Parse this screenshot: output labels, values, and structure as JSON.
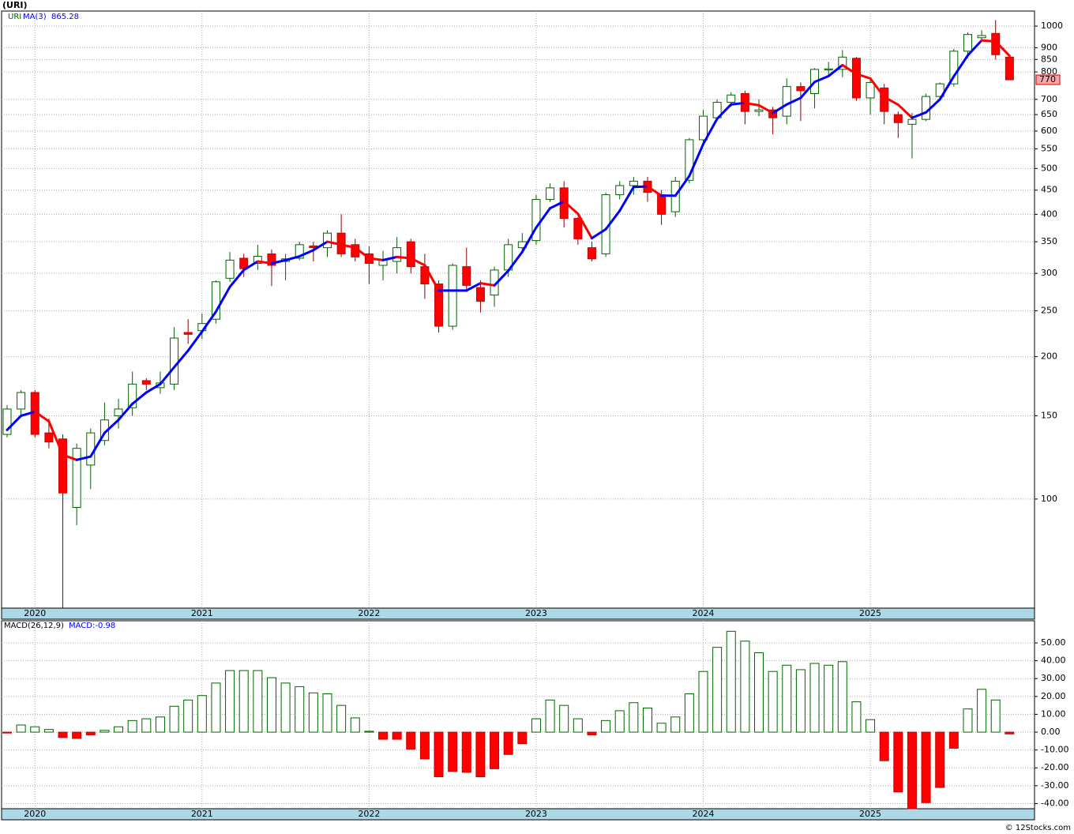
{
  "chart_data": [
    {
      "type": "candlestick",
      "title": "(URI)",
      "name": "URI",
      "log_scale": true,
      "grid": true,
      "up_color": "#006400",
      "down_color": "#ff0000",
      "categories": [
        null,
        null,
        "2020",
        null,
        null,
        null,
        null,
        null,
        null,
        null,
        null,
        null,
        null,
        null,
        "2021",
        null,
        null,
        null,
        null,
        null,
        null,
        null,
        null,
        null,
        null,
        null,
        "2022",
        null,
        null,
        null,
        null,
        null,
        null,
        null,
        null,
        null,
        null,
        null,
        "2023",
        null,
        null,
        null,
        null,
        null,
        null,
        null,
        null,
        null,
        null,
        null,
        "2024",
        null,
        null,
        null,
        null,
        null,
        null,
        null,
        null,
        null,
        null,
        null,
        "2025",
        null,
        null,
        null,
        null,
        null,
        null,
        null,
        null,
        null,
        null
      ],
      "open": [
        137,
        155,
        168,
        138,
        134,
        96,
        118,
        133,
        150,
        156,
        178,
        172,
        175,
        225,
        227,
        240,
        293,
        323,
        315,
        330,
        318,
        323,
        343,
        340,
        365,
        345,
        330,
        312,
        318,
        350,
        310,
        285,
        232,
        310,
        280,
        270,
        305,
        340,
        352,
        430,
        455,
        392,
        340,
        330,
        440,
        460,
        470,
        440,
        405,
        472,
        575,
        640,
        690,
        720,
        660,
        665,
        645,
        745,
        720,
        808,
        810,
        855,
        705,
        740,
        650,
        620,
        635,
        710,
        755,
        885,
        945,
        965,
        860
      ],
      "high": [
        158,
        170,
        170,
        148,
        137,
        131,
        141,
        160,
        163,
        186,
        180,
        186,
        231,
        240,
        247,
        290,
        333,
        330,
        345,
        337,
        330,
        350,
        350,
        370,
        400,
        355,
        342,
        335,
        358,
        355,
        330,
        290,
        315,
        340,
        290,
        310,
        355,
        365,
        440,
        465,
        470,
        395,
        350,
        445,
        470,
        480,
        480,
        450,
        480,
        580,
        665,
        700,
        725,
        730,
        700,
        675,
        775,
        760,
        815,
        840,
        890,
        860,
        780,
        755,
        660,
        655,
        720,
        760,
        895,
        970,
        980,
        1030,
        865
      ],
      "low": [
        135,
        150,
        135,
        128,
        58.9,
        88,
        105,
        130,
        141,
        150,
        170,
        167,
        170,
        213,
        218,
        235,
        288,
        295,
        305,
        282,
        290,
        320,
        318,
        325,
        325,
        318,
        285,
        290,
        300,
        300,
        265,
        225,
        228,
        278,
        248,
        255,
        295,
        335,
        345,
        425,
        375,
        345,
        318,
        325,
        430,
        440,
        425,
        380,
        395,
        465,
        560,
        630,
        675,
        620,
        645,
        590,
        620,
        630,
        670,
        780,
        780,
        695,
        650,
        620,
        580,
        525,
        630,
        705,
        745,
        855,
        930,
        850,
        770
      ],
      "close": [
        155,
        168,
        137,
        132,
        103,
        128,
        138,
        147,
        155,
        175,
        175,
        176,
        219,
        223,
        235,
        288,
        320,
        307,
        326,
        312,
        322,
        345,
        340,
        365,
        330,
        325,
        315,
        320,
        340,
        310,
        285,
        232,
        312,
        283,
        262,
        305,
        345,
        350,
        430,
        455,
        392,
        355,
        322,
        440,
        460,
        470,
        445,
        400,
        470,
        575,
        645,
        690,
        715,
        660,
        665,
        640,
        745,
        730,
        810,
        812,
        860,
        705,
        760,
        660,
        625,
        635,
        710,
        755,
        885,
        960,
        955,
        870,
        770
      ],
      "ma": {
        "name": "MA(3)",
        "color": "#0000ff",
        "down_color": "#ff0000",
        "values": [
          140,
          150,
          153,
          146,
          124,
          121,
          123,
          138,
          147,
          159,
          168,
          175,
          190,
          206,
          226,
          249,
          281,
          305,
          318,
          315,
          320,
          326,
          336,
          350,
          345,
          340,
          323,
          320,
          325,
          323,
          312,
          276,
          276,
          276,
          286,
          283,
          304,
          333,
          375,
          412,
          426,
          401,
          356,
          372,
          407,
          457,
          458,
          438,
          438,
          482,
          563,
          637,
          683,
          688,
          680,
          655,
          683,
          705,
          762,
          784,
          827,
          792,
          775,
          708,
          682,
          640,
          657,
          700,
          783,
          867,
          933,
          928,
          865.28
        ]
      },
      "ylim": [
        58.8,
        1076
      ],
      "yticks": [
        100,
        150,
        200,
        250,
        300,
        350,
        400,
        450,
        500,
        550,
        600,
        650,
        700,
        800,
        850,
        900,
        1000
      ]
    },
    {
      "type": "bar",
      "name": "MACD(26,12,9)",
      "legend_value": "MACD:-0.98",
      "grid": true,
      "up_color": "#006400",
      "down_color": "#ff0000",
      "categories": [
        null,
        null,
        "2020",
        null,
        null,
        null,
        null,
        null,
        null,
        null,
        null,
        null,
        null,
        null,
        "2021",
        null,
        null,
        null,
        null,
        null,
        null,
        null,
        null,
        null,
        null,
        null,
        "2022",
        null,
        null,
        null,
        null,
        null,
        null,
        null,
        null,
        null,
        null,
        null,
        "2023",
        null,
        null,
        null,
        null,
        null,
        null,
        null,
        null,
        null,
        null,
        null,
        "2024",
        null,
        null,
        null,
        null,
        null,
        null,
        null,
        null,
        null,
        null,
        null,
        "2025",
        null,
        null,
        null,
        null,
        null,
        null,
        null,
        null,
        null,
        null
      ],
      "values": [
        -0.5,
        4,
        3,
        1.5,
        -3,
        -3.5,
        -1.5,
        1,
        3,
        6.5,
        7.5,
        8.5,
        14.5,
        18,
        20.5,
        27.5,
        34.5,
        34.5,
        34.5,
        30.5,
        27.5,
        25.5,
        22,
        21.5,
        15,
        8,
        0.5,
        -4,
        -4,
        -9.5,
        -15,
        -25,
        -22,
        -22.5,
        -25,
        -20.5,
        -12.5,
        -6.5,
        7.5,
        18,
        15,
        7.5,
        -1.5,
        6.5,
        12,
        16.5,
        13.5,
        5,
        8.5,
        21.5,
        34,
        47.5,
        56.5,
        51,
        44.5,
        34,
        37.5,
        35,
        38.5,
        37.5,
        39.5,
        17,
        7,
        -16,
        -33.5,
        -42.9,
        -39.5,
        -31,
        -9,
        13,
        24,
        18,
        -0.98
      ],
      "ylim": [
        -42.9,
        62.4
      ],
      "yticks": [
        {
          "value": 50,
          "label": "50.00"
        },
        {
          "value": 40,
          "label": "40.00"
        },
        {
          "value": 30,
          "label": "30.00"
        },
        {
          "value": 20,
          "label": "20.00"
        },
        {
          "value": 10,
          "label": "10.00"
        },
        {
          "value": 0,
          "label": "0.00"
        },
        {
          "value": -10,
          "label": "-10.00"
        },
        {
          "value": -20,
          "label": "-20.00"
        },
        {
          "value": -30,
          "label": "-30.00"
        },
        {
          "value": -40,
          "label": "-40.00"
        }
      ]
    }
  ],
  "footer": "© 12Stocks.com"
}
